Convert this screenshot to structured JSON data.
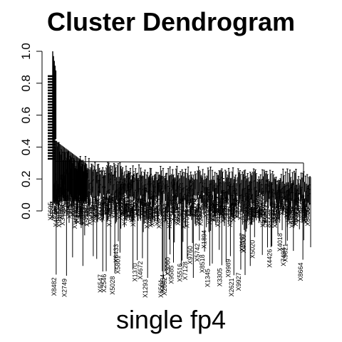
{
  "chart_data": {
    "type": "dendrogram",
    "title": "Cluster Dendrogram",
    "sub": "single fp4",
    "xlabel": "",
    "ylabel": "",
    "ylim": [
      0,
      1
    ],
    "yticks": [
      "0.0",
      "0.2",
      "0.4",
      "0.6",
      "0.8",
      "1.0"
    ],
    "approx_leaf_count": 300,
    "top_merge_height": 1.0,
    "main_block_height": 0.3,
    "leaf_label_prefix": "X",
    "color": "#000000"
  }
}
